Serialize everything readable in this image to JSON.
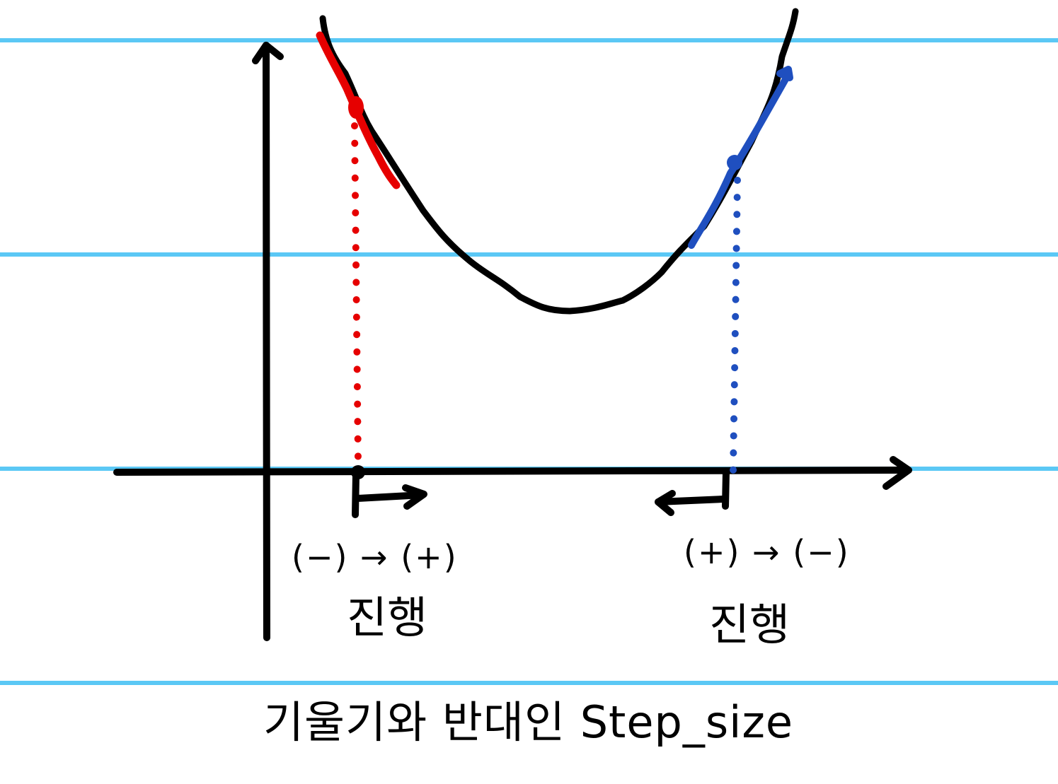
{
  "left_annotation": {
    "sign_change": "(−) → (+)",
    "label": "진행"
  },
  "right_annotation": {
    "sign_change": "(+) → (−)",
    "label": "진행"
  },
  "caption": "기울기와 반대인 Step_size",
  "colors": {
    "background": "#ffffff",
    "ruled_lines": "#5bc8f5",
    "axes_and_curve": "#000000",
    "left_tangent": "#e60000",
    "right_tangent": "#1f4fbf"
  }
}
